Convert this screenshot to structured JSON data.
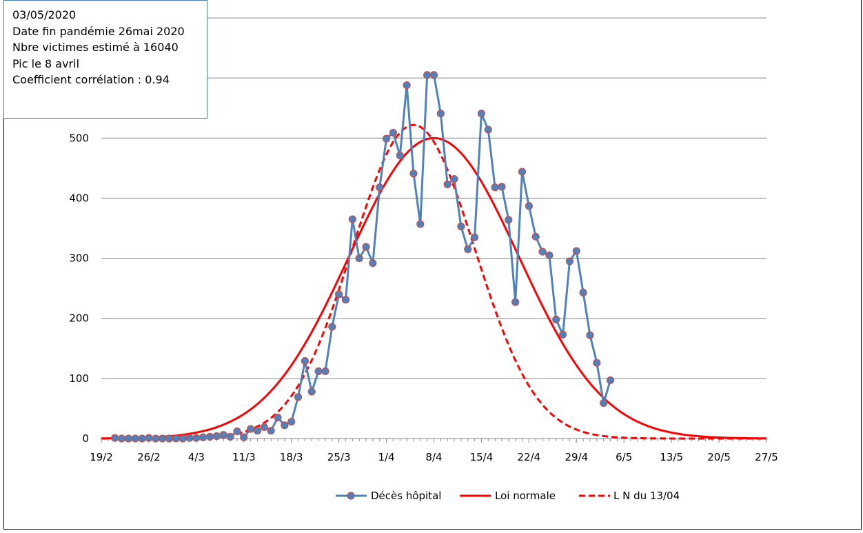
{
  "info_box": {
    "lines": [
      "03/05/2020",
      "Date fin pandémie 26mai 2020",
      "Nbre victimes estimé à  16040",
      "Pic le 8 avril",
      "Coefficient corrélation : 0.94"
    ]
  },
  "chart_data": {
    "type": "line",
    "title": "",
    "xlabel": "",
    "ylabel": "",
    "x_tick_labels": [
      "19/2",
      "26/2",
      "4/3",
      "11/3",
      "18/3",
      "25/3",
      "1/4",
      "8/4",
      "15/4",
      "22/4",
      "29/4",
      "6/5",
      "13/5",
      "20/5",
      "27/5"
    ],
    "y_tick_labels": [
      "0",
      "100",
      "200",
      "300",
      "400",
      "500"
    ],
    "ylim": [
      0,
      700
    ],
    "grid": "horizontal",
    "legend_position": "bottom",
    "colors": {
      "observed": "#4f81bd",
      "marker_edge": "#c0504d",
      "model": "#ff0000"
    },
    "series": [
      {
        "name": "Décès hôpital",
        "style": "line-markers",
        "start_day": 2,
        "values": [
          1,
          0,
          0,
          0,
          0,
          1,
          0,
          0,
          0,
          0,
          0,
          1,
          1,
          2,
          3,
          4,
          6,
          3,
          12,
          2,
          16,
          13,
          19,
          13,
          35,
          22,
          28,
          69,
          129,
          78,
          112,
          112,
          186,
          240,
          231,
          365,
          300,
          319,
          292,
          418,
          499,
          509,
          471,
          588,
          441,
          357,
          605,
          605,
          541,
          423,
          432,
          353,
          315,
          335,
          541,
          514,
          418,
          419,
          364,
          227,
          444,
          387,
          336,
          311,
          305,
          198,
          173,
          295,
          312,
          243,
          172,
          126,
          59,
          97
        ]
      },
      {
        "name": "Loi normale",
        "style": "solid",
        "peak": 500,
        "peak_day": 49,
        "sigma_days": 12.5
      },
      {
        "name": "L N du 13/04",
        "style": "dashed",
        "peak": 522,
        "peak_day": 46,
        "sigma_days": 9
      }
    ]
  }
}
